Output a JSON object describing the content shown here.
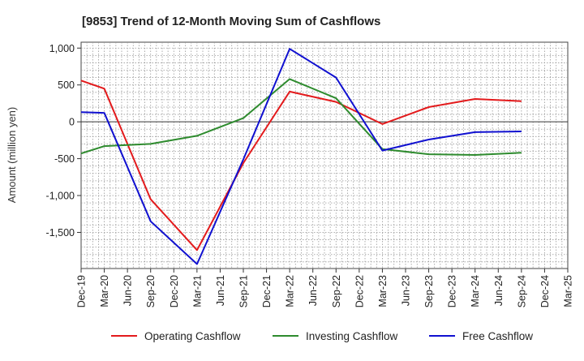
{
  "chart_data": {
    "type": "line",
    "title": "[9853]  Trend of 12-Month Moving Sum of Cashflows",
    "ylabel": "Amount (million yen)",
    "xlabel": "",
    "categories": [
      "Dec-19",
      "Mar-20",
      "Jun-20",
      "Sep-20",
      "Dec-20",
      "Mar-21",
      "Jun-21",
      "Sep-21",
      "Dec-21",
      "Mar-22",
      "Jun-22",
      "Sep-22",
      "Dec-22",
      "Mar-23",
      "Jun-23",
      "Sep-23",
      "Dec-23",
      "Mar-24",
      "Jun-24",
      "Sep-24",
      "Dec-24",
      "Mar-25"
    ],
    "y_ticks": [
      1000,
      500,
      0,
      -500,
      -1000,
      -1500
    ],
    "y_tick_labels": [
      "1,000",
      "500",
      "0",
      "-500",
      "-1,000",
      "-1,500"
    ],
    "ylim": [
      -1990,
      1080
    ],
    "grid": true,
    "legend_position": "bottom",
    "series": [
      {
        "name": "Operating Cashflow",
        "color": "#e31a1c",
        "values": [
          560,
          450,
          null,
          -1050,
          null,
          -1740,
          null,
          -560,
          null,
          410,
          null,
          270,
          null,
          -30,
          null,
          200,
          null,
          310,
          null,
          280,
          null,
          null
        ]
      },
      {
        "name": "Investing Cashflow",
        "color": "#2e8b2e",
        "values": [
          -430,
          -330,
          null,
          -300,
          null,
          -190,
          null,
          50,
          null,
          580,
          null,
          320,
          null,
          -370,
          null,
          -440,
          null,
          -450,
          null,
          -420,
          null,
          null
        ]
      },
      {
        "name": "Free Cashflow",
        "color": "#1010d0",
        "values": [
          130,
          120,
          null,
          -1350,
          null,
          -1930,
          null,
          -510,
          null,
          990,
          null,
          600,
          null,
          -390,
          null,
          -240,
          null,
          -140,
          null,
          -130,
          null,
          null
        ]
      }
    ]
  }
}
